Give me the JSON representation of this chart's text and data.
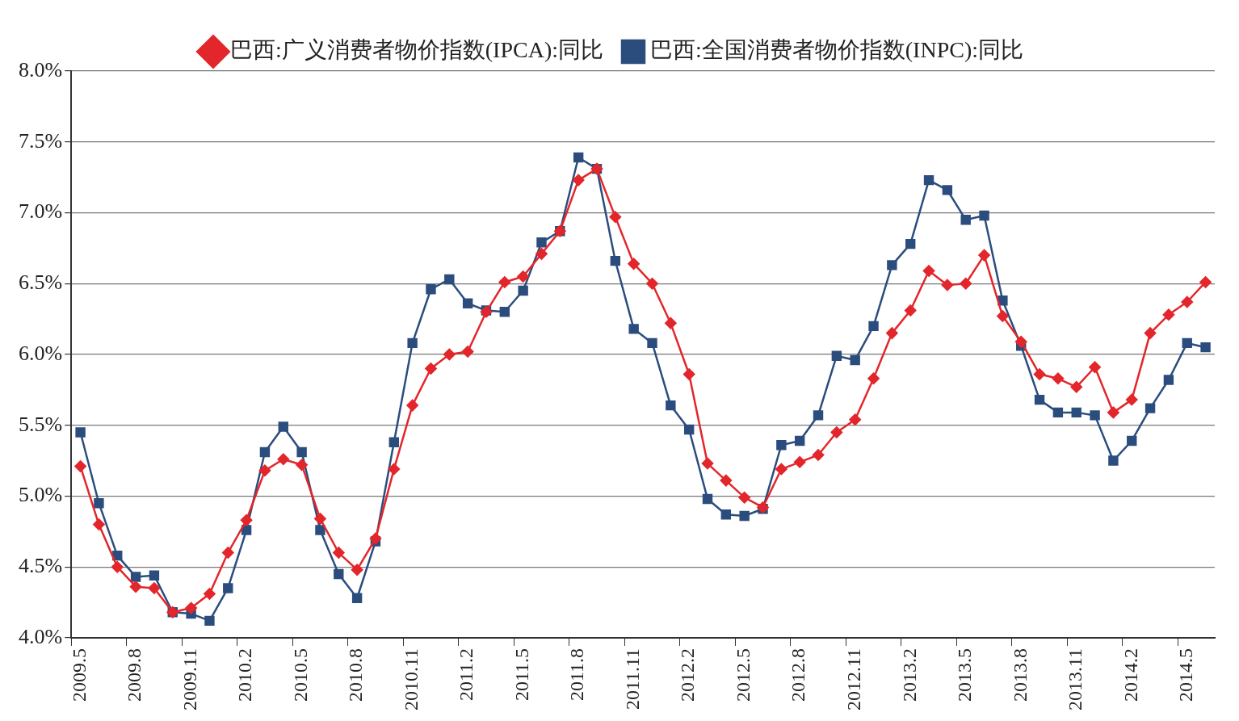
{
  "chart_data": {
    "type": "line",
    "categories": [
      "2009.5",
      null,
      null,
      "2009.8",
      null,
      null,
      "2009.11",
      null,
      null,
      "2010.2",
      null,
      null,
      "2010.5",
      null,
      null,
      "2010.8",
      null,
      null,
      "2010.11",
      null,
      null,
      "2011.2",
      null,
      null,
      "2011.5",
      null,
      null,
      "2011.8",
      null,
      null,
      "2011.11",
      null,
      null,
      "2012.2",
      null,
      null,
      "2012.5",
      null,
      null,
      "2012.8",
      null,
      null,
      "2012.11",
      null,
      null,
      "2013.2",
      null,
      null,
      "2013.5",
      null,
      null,
      "2013.8",
      null,
      null,
      "2013.11",
      null,
      null,
      "2014.2",
      null,
      null,
      "2014.5",
      null
    ],
    "series": [
      {
        "name": "巴西:广义消费者物价指数(IPCA):同比",
        "color": "#e3262b",
        "marker": "diamond",
        "values": [
          5.21,
          4.8,
          4.5,
          4.36,
          4.35,
          4.18,
          4.21,
          4.31,
          4.6,
          4.83,
          5.18,
          5.26,
          5.22,
          4.84,
          4.6,
          4.48,
          4.7,
          5.19,
          5.64,
          5.9,
          6.0,
          6.02,
          6.3,
          6.51,
          6.55,
          6.71,
          6.87,
          7.23,
          7.31,
          6.97,
          6.64,
          6.5,
          6.22,
          5.86,
          5.23,
          5.11,
          4.99,
          4.92,
          5.19,
          5.24,
          5.29,
          5.45,
          5.54,
          5.83,
          6.15,
          6.31,
          6.59,
          6.49,
          6.5,
          6.7,
          6.27,
          6.09,
          5.86,
          5.83,
          5.77,
          5.91,
          5.59,
          5.68,
          6.15,
          6.28,
          6.37,
          6.51
        ]
      },
      {
        "name": "巴西:全国消费者物价指数(INPC):同比",
        "color": "#2b4d7e",
        "marker": "square",
        "values": [
          5.45,
          4.95,
          4.58,
          4.43,
          4.44,
          4.18,
          4.17,
          4.12,
          4.35,
          4.76,
          5.31,
          5.49,
          5.31,
          4.76,
          4.45,
          4.28,
          4.68,
          5.38,
          6.08,
          6.46,
          6.53,
          6.36,
          6.31,
          6.3,
          6.45,
          6.79,
          6.87,
          7.39,
          7.31,
          6.66,
          6.18,
          6.08,
          5.64,
          5.47,
          4.98,
          4.87,
          4.86,
          4.91,
          5.36,
          5.39,
          5.57,
          5.99,
          5.96,
          6.2,
          6.63,
          6.78,
          7.23,
          7.16,
          6.95,
          6.98,
          6.38,
          6.06,
          5.68,
          5.59,
          5.59,
          5.57,
          5.25,
          5.39,
          5.62,
          5.82,
          6.08,
          6.05
        ]
      }
    ],
    "ylim": [
      4.0,
      8.0
    ],
    "yticks": [
      {
        "value": 4.0,
        "label": "4.0%"
      },
      {
        "value": 4.5,
        "label": "4.5%"
      },
      {
        "value": 5.0,
        "label": "5.0%"
      },
      {
        "value": 5.5,
        "label": "5.5%"
      },
      {
        "value": 6.0,
        "label": "6.0%"
      },
      {
        "value": 6.5,
        "label": "6.5%"
      },
      {
        "value": 7.0,
        "label": "7.0%"
      },
      {
        "value": 7.5,
        "label": "7.5%"
      },
      {
        "value": 8.0,
        "label": "8.0%"
      }
    ],
    "grid": "y",
    "legend": "top",
    "line_style": "solid"
  }
}
